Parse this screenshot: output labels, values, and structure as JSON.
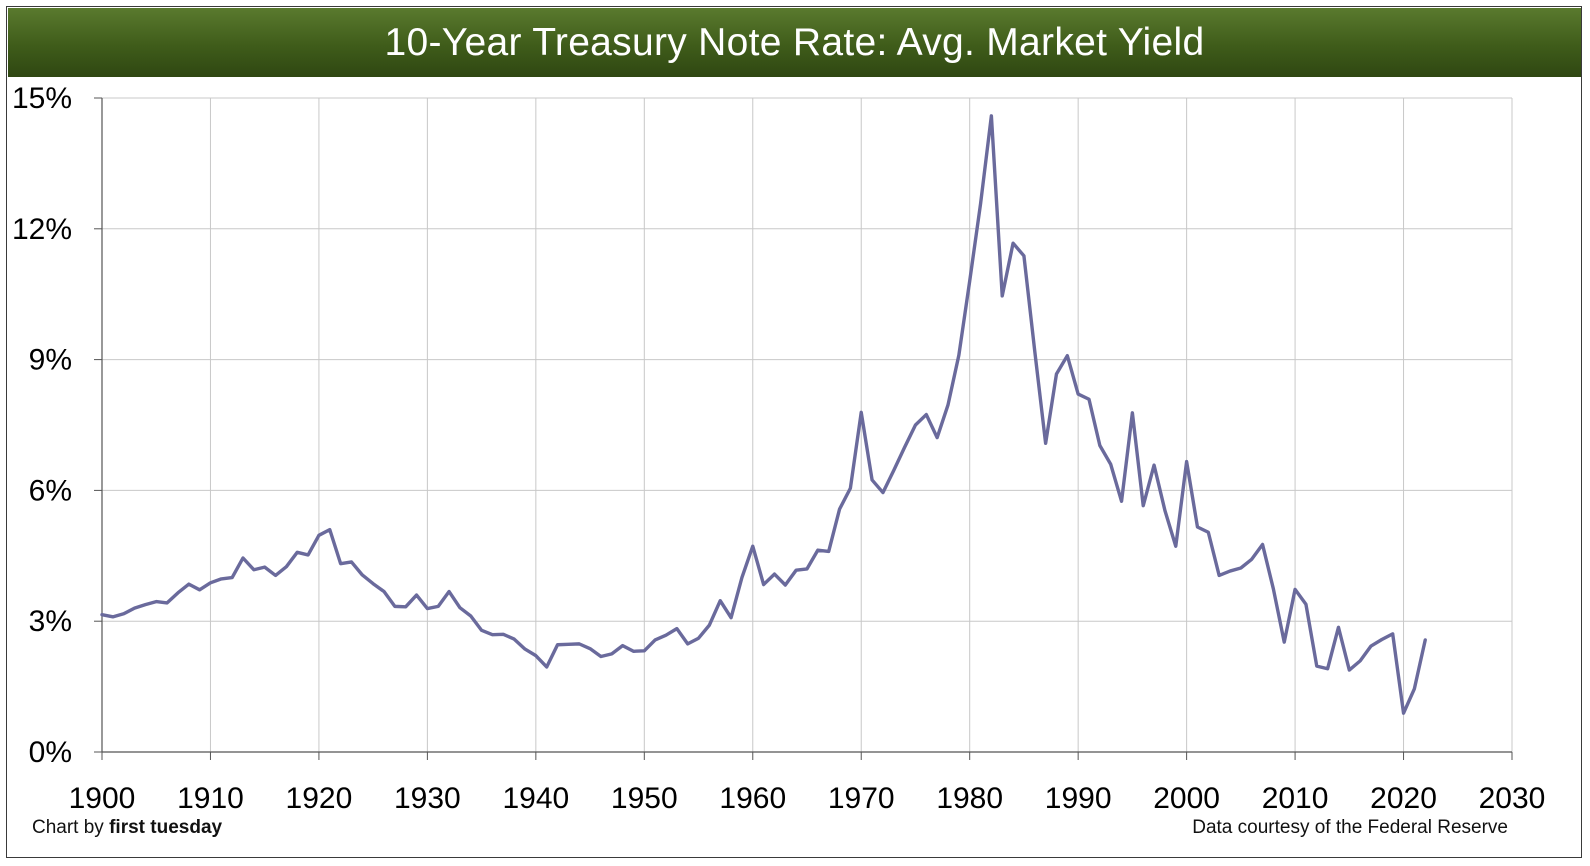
{
  "chart_data": {
    "type": "line",
    "title": "10-Year Treasury Note Rate: Avg. Market Yield",
    "xlabel": "",
    "ylabel": "",
    "xlim": [
      1900,
      2030
    ],
    "ylim": [
      0,
      15
    ],
    "x_ticks": [
      "1900",
      "1910",
      "1920",
      "1930",
      "1940",
      "1950",
      "1960",
      "1970",
      "1980",
      "1990",
      "2000",
      "2010",
      "2020",
      "2030"
    ],
    "y_ticks": [
      "0%",
      "3%",
      "6%",
      "9%",
      "12%",
      "15%"
    ],
    "grid": true,
    "line_color": "#6a6a9c",
    "series": [
      {
        "name": "10-Year Treasury Note Rate",
        "x": [
          1900,
          1901,
          1902,
          1903,
          1904,
          1905,
          1906,
          1907,
          1908,
          1909,
          1910,
          1911,
          1912,
          1913,
          1914,
          1915,
          1916,
          1917,
          1918,
          1919,
          1920,
          1921,
          1922,
          1923,
          1924,
          1925,
          1926,
          1927,
          1928,
          1929,
          1930,
          1931,
          1932,
          1933,
          1934,
          1935,
          1936,
          1937,
          1938,
          1939,
          1940,
          1941,
          1942,
          1943,
          1944,
          1945,
          1946,
          1947,
          1948,
          1949,
          1950,
          1951,
          1952,
          1953,
          1954,
          1955,
          1956,
          1957,
          1958,
          1959,
          1960,
          1961,
          1962,
          1963,
          1964,
          1965,
          1966,
          1967,
          1968,
          1969,
          1970,
          1971,
          1972,
          1973,
          1974,
          1975,
          1976,
          1977,
          1978,
          1979,
          1980,
          1981,
          1982,
          1983,
          1984,
          1985,
          1986,
          1987,
          1988,
          1989,
          1990,
          1991,
          1992,
          1993,
          1994,
          1995,
          1996,
          1997,
          1998,
          1999,
          2000,
          2001,
          2002,
          2003,
          2004,
          2005,
          2006,
          2007,
          2008,
          2009,
          2010,
          2011,
          2012,
          2013,
          2014,
          2015,
          2016,
          2017,
          2018,
          2019,
          2020,
          2021,
          2022
        ],
        "values": [
          3.15,
          3.1,
          3.17,
          3.3,
          3.38,
          3.45,
          3.42,
          3.65,
          3.85,
          3.72,
          3.88,
          3.97,
          4.0,
          4.45,
          4.18,
          4.24,
          4.05,
          4.25,
          4.58,
          4.52,
          4.97,
          5.1,
          4.32,
          4.36,
          4.06,
          3.86,
          3.68,
          3.34,
          3.33,
          3.6,
          3.29,
          3.34,
          3.68,
          3.31,
          3.12,
          2.79,
          2.69,
          2.7,
          2.59,
          2.36,
          2.21,
          1.95,
          2.46,
          2.47,
          2.48,
          2.37,
          2.19,
          2.25,
          2.44,
          2.31,
          2.32,
          2.57,
          2.68,
          2.83,
          2.48,
          2.61,
          2.91,
          3.47,
          3.08,
          4.0,
          4.72,
          3.84,
          4.08,
          3.83,
          4.17,
          4.2,
          4.63,
          4.6,
          5.57,
          6.05,
          7.79,
          6.24,
          5.95,
          6.46,
          6.99,
          7.5,
          7.74,
          7.21,
          7.96,
          9.1,
          10.8,
          12.57,
          14.59,
          10.46,
          11.67,
          11.38,
          9.19,
          7.08,
          8.67,
          9.09,
          8.21,
          8.09,
          7.03,
          6.6,
          5.75,
          7.78,
          5.65,
          6.58,
          5.54,
          4.72,
          6.66,
          5.16,
          5.04,
          4.05,
          4.15,
          4.22,
          4.42,
          4.76,
          3.74,
          2.52,
          3.73,
          3.39,
          1.97,
          1.91,
          2.86,
          1.88,
          2.09,
          2.43,
          2.58,
          2.71,
          0.89,
          1.45,
          2.57
        ]
      }
    ]
  },
  "footer": {
    "credit_prefix": "Chart by ",
    "credit_brand": "first tuesday",
    "source": "Data courtesy of the Federal Reserve"
  }
}
